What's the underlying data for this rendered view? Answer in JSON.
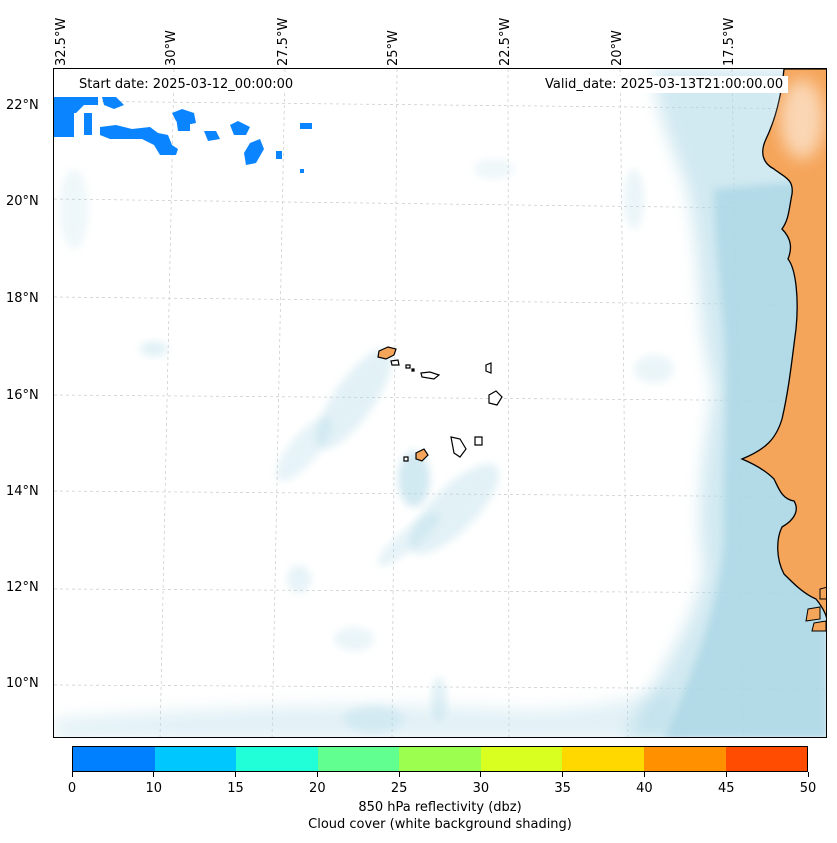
{
  "map": {
    "start_date": "Start date: 2025-03-12_00:00:00",
    "valid_date": "Valid_date: 2025-03-13T21:00:00.00",
    "lon_labels": [
      "32.5°W",
      "30°W",
      "27.5°W",
      "25°W",
      "22.5°W",
      "20°W",
      "17.5°W"
    ],
    "lat_labels": [
      "22°N",
      "20°N",
      "18°N",
      "16°N",
      "14°N",
      "12°N",
      "10°N"
    ],
    "colors": {
      "land": "#f5a55a",
      "cloud": "#add8e6",
      "reflectivity_low": "#0a84ff",
      "coast": "#000000",
      "grid": "#c8c8c8"
    }
  },
  "colorbar": {
    "ticks": [
      "0",
      "10",
      "15",
      "20",
      "25",
      "30",
      "35",
      "40",
      "45",
      "50"
    ],
    "colors": [
      "#0080ff",
      "#00c8ff",
      "#20ffd8",
      "#60ff90",
      "#9cff50",
      "#d8ff20",
      "#ffd800",
      "#ff9000",
      "#ff4c00"
    ],
    "label_line1": "850 hPa reflectivity (dbz)",
    "label_line2": "Cloud cover (white background shading)"
  }
}
